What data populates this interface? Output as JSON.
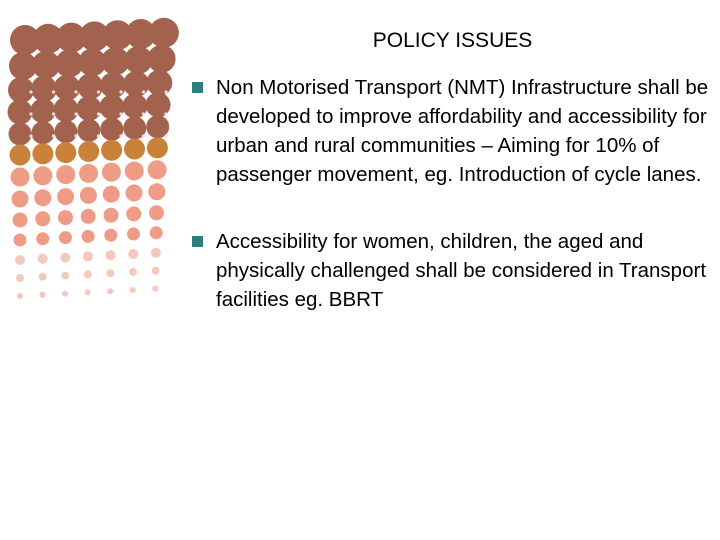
{
  "slide": {
    "title": "POLICY ISSUES",
    "bullets": [
      {
        "text": "Non Motorised Transport (NMT) Infrastructure shall be developed to improve affordability and accessibility for urban and rural communities – Aiming for 10% of passenger movement, eg. Introduction of cycle lanes."
      },
      {
        "text": "Accessibility for women, children, the aged and physically challenged shall be considered in Transport facilities eg. BBRT"
      }
    ]
  },
  "colors": {
    "bullet_marker": "#2e7d7d",
    "dots_brown": "#a3624e",
    "dots_orange": "#c8823a",
    "dots_salmon": "#ef9c86",
    "dots_pale": "#f2c9bc"
  }
}
